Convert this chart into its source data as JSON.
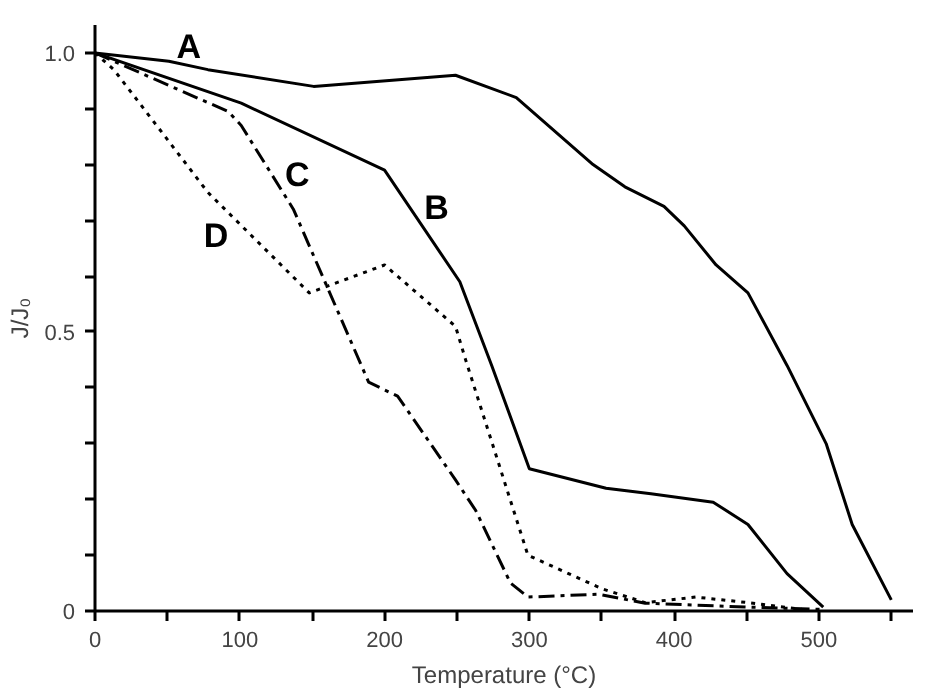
{
  "chart_data": {
    "type": "line",
    "xlabel": "Temperature (°C)",
    "ylabel": "J/J₀",
    "xlim": [
      0,
      565
    ],
    "ylim": [
      0,
      1.05
    ],
    "xticks": [
      0,
      {
        "value": 50,
        "label": null
      },
      100,
      {
        "value": 150,
        "label": null
      },
      200,
      {
        "value": 250,
        "label": null
      },
      300,
      {
        "value": 350,
        "label": null
      },
      400,
      {
        "value": 450,
        "label": null
      },
      500,
      {
        "value": 550,
        "label": null
      }
    ],
    "yticks": [
      0,
      {
        "value": 0.1,
        "label": null
      },
      {
        "value": 0.2,
        "label": null
      },
      {
        "value": 0.3,
        "label": null
      },
      {
        "value": 0.4,
        "label": null
      },
      0.5,
      {
        "value": 0.6,
        "label": null
      },
      {
        "value": 0.7,
        "label": null
      },
      {
        "value": 0.8,
        "label": null
      },
      {
        "value": 0.9,
        "label": null
      },
      {
        "value": 1.0,
        "label": "1.0"
      }
    ],
    "grid": false,
    "legend": false,
    "marker": "none",
    "series": [
      {
        "name": "A",
        "color": "#000000",
        "line_style": "solid",
        "x": [
          0,
          51,
          78,
          151,
          249,
          291,
          344,
          366,
          393,
          407,
          429,
          451,
          478,
          505,
          523,
          550
        ],
        "values": [
          1.0,
          0.985,
          0.97,
          0.94,
          0.96,
          0.92,
          0.8,
          0.76,
          0.725,
          0.69,
          0.62,
          0.57,
          0.44,
          0.3,
          0.155,
          0.02
        ]
      },
      {
        "name": "B",
        "color": "#000000",
        "line_style": "solid",
        "x": [
          0,
          101,
          200,
          252,
          274,
          300,
          353,
          384,
          427,
          451,
          478,
          503
        ],
        "values": [
          1.0,
          0.91,
          0.79,
          0.59,
          0.44,
          0.255,
          0.22,
          0.21,
          0.195,
          0.155,
          0.067,
          0.007
        ]
      },
      {
        "name": "C",
        "color": "#000000",
        "line_style": "dashdot",
        "x": [
          0,
          92,
          101,
          137,
          189,
          209,
          249,
          263,
          287,
          299,
          348,
          380,
          451,
          501
        ],
        "values": [
          1.0,
          0.895,
          0.87,
          0.72,
          0.41,
          0.385,
          0.235,
          0.18,
          0.05,
          0.025,
          0.03,
          0.014,
          0.007,
          0.003
        ]
      },
      {
        "name": "D",
        "color": "#000000",
        "line_style": "dotted",
        "x": [
          0,
          13,
          78,
          148,
          200,
          249,
          256,
          299,
          350,
          380,
          415,
          451,
          488
        ],
        "values": [
          1.0,
          0.97,
          0.75,
          0.57,
          0.62,
          0.51,
          0.45,
          0.1,
          0.04,
          0.015,
          0.025,
          0.015,
          0.003
        ]
      }
    ]
  }
}
